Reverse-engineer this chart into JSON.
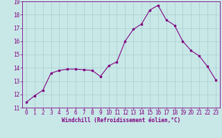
{
  "x": [
    0,
    1,
    2,
    3,
    4,
    5,
    6,
    7,
    8,
    9,
    10,
    11,
    12,
    13,
    14,
    15,
    16,
    17,
    18,
    19,
    20,
    21,
    22,
    23
  ],
  "y": [
    11.4,
    11.9,
    12.3,
    13.6,
    13.8,
    13.9,
    13.9,
    13.85,
    13.8,
    13.35,
    14.15,
    14.45,
    16.0,
    16.9,
    17.3,
    18.35,
    18.7,
    17.6,
    17.2,
    16.0,
    15.3,
    14.9,
    14.1,
    13.1
  ],
  "line_color": "#800080",
  "marker": "s",
  "marker_size": 2,
  "bg_color": "#c8e8e8",
  "grid_color": "#aacccc",
  "xlabel": "Windchill (Refroidissement éolien,°C)",
  "xlim": [
    -0.5,
    23.5
  ],
  "ylim": [
    11,
    19
  ],
  "xticks": [
    0,
    1,
    2,
    3,
    4,
    5,
    6,
    7,
    8,
    9,
    10,
    11,
    12,
    13,
    14,
    15,
    16,
    17,
    18,
    19,
    20,
    21,
    22,
    23
  ],
  "yticks": [
    11,
    12,
    13,
    14,
    15,
    16,
    17,
    18,
    19
  ],
  "xlabel_fontsize": 5.5,
  "tick_fontsize": 5.5,
  "line_width": 0.8
}
